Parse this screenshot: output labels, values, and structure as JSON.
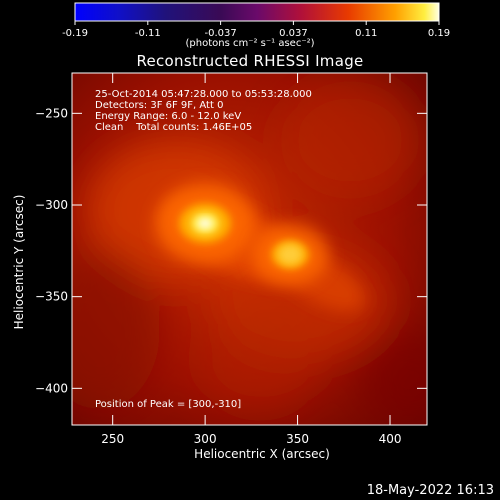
{
  "colorbar": {
    "ticks": [
      "-0.19",
      "-0.11",
      "-0.037",
      "0.037",
      "0.11",
      "0.19"
    ],
    "units_label": "(photons cm⁻² s⁻¹ asec⁻²)"
  },
  "title": "Reconstructed RHESSI Image",
  "info": {
    "time_range": "25-Oct-2014 05:47:28.000 to 05:53:28.000",
    "detectors": "Detectors: 3F 6F 9F, Att 0",
    "energy": "Energy Range: 6.0 - 12.0 keV",
    "clean": "Clean    Total counts: 1.46E+05",
    "peak": "Position of Peak = [300,-310]"
  },
  "footer": "18-May-2022 16:13",
  "chart_data": {
    "type": "heatmap",
    "title": "Reconstructed RHESSI Image",
    "xlabel": "Heliocentric X (arcsec)",
    "ylabel": "Heliocentric Y (arcsec)",
    "xlim": [
      228,
      420
    ],
    "ylim": [
      -420,
      -228
    ],
    "x_ticks": [
      250,
      300,
      350,
      400
    ],
    "y_ticks": [
      -250,
      -300,
      -350,
      -400
    ],
    "value_range": [
      -0.19,
      0.19
    ],
    "colormap": "RHESSI red-temperature",
    "sources": [
      {
        "x": 300,
        "y": -310,
        "label": "peak",
        "relative_intensity": 1.0
      },
      {
        "x": 346,
        "y": -327,
        "relative_intensity": 0.72
      }
    ],
    "peak": [
      300,
      -310
    ]
  }
}
